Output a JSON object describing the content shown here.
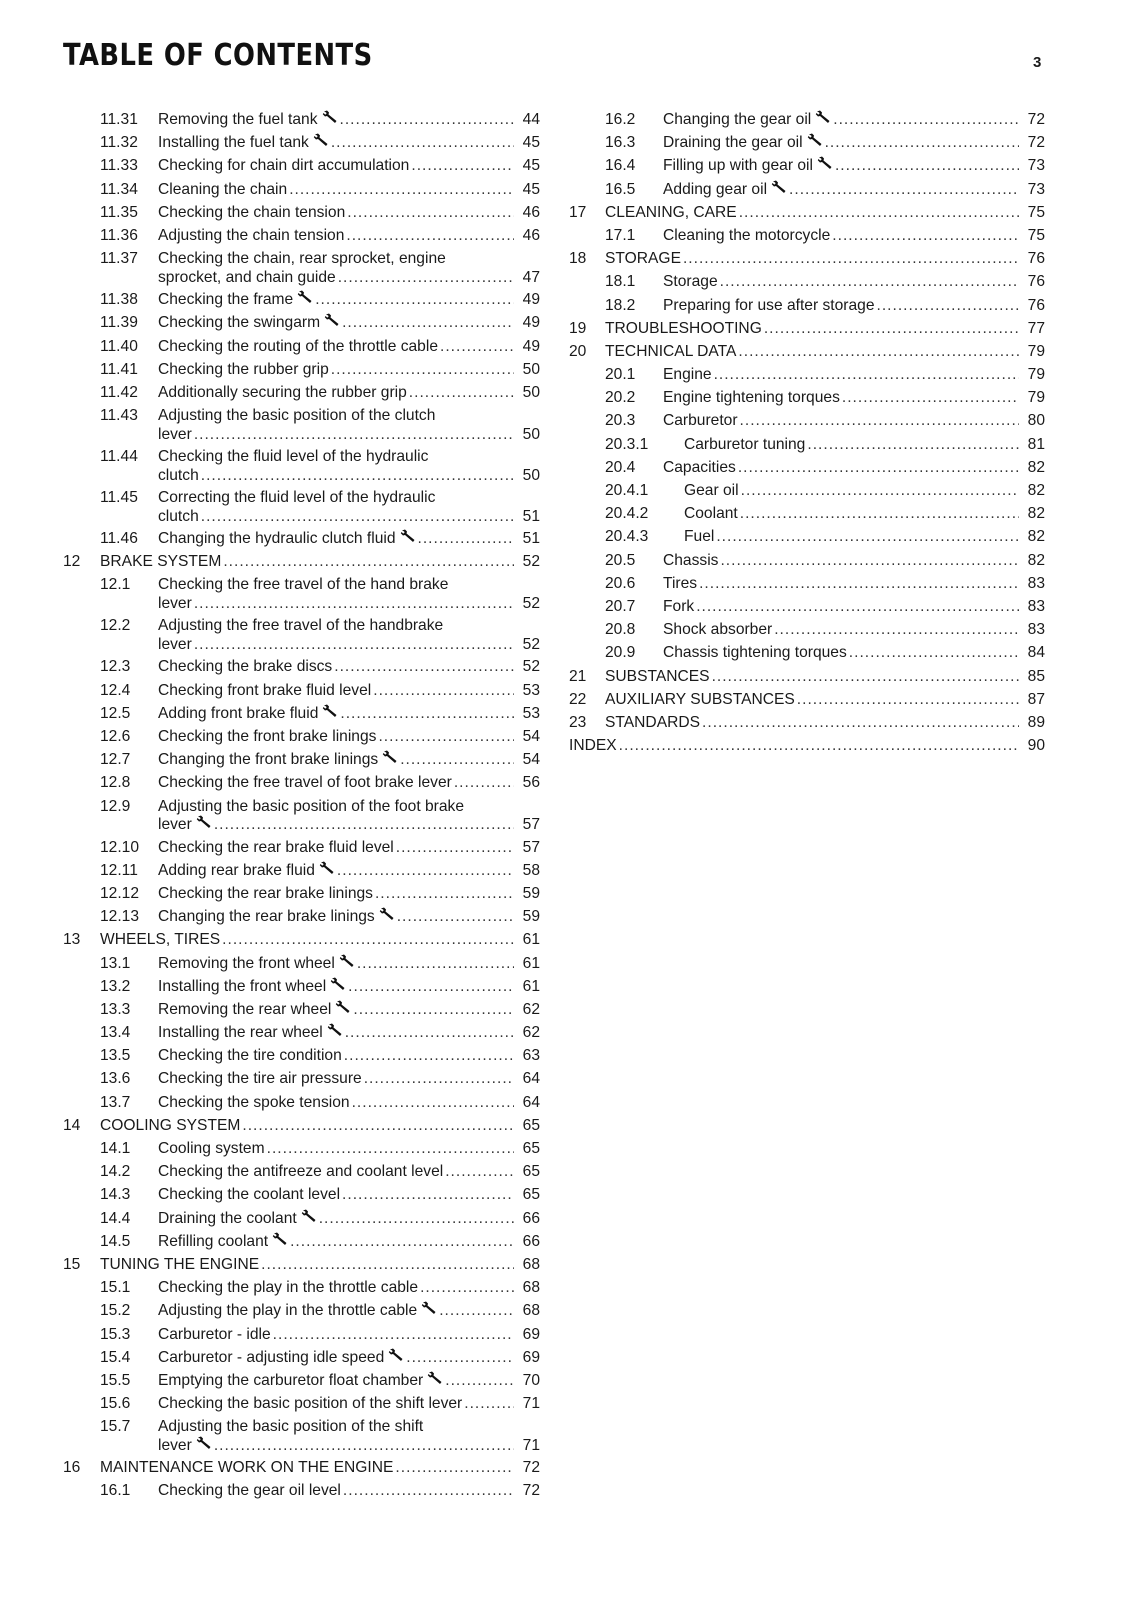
{
  "header": {
    "title": "TABLE OF CONTENTS",
    "page_number": "3"
  },
  "left_column": [
    {
      "lvl": "sec",
      "num": "11.31",
      "lines": [
        "Removing the fuel tank"
      ],
      "wrench": true,
      "page": "44"
    },
    {
      "lvl": "sec",
      "num": "11.32",
      "lines": [
        "Installing the fuel tank"
      ],
      "wrench": true,
      "page": "45"
    },
    {
      "lvl": "sec",
      "num": "11.33",
      "lines": [
        "Checking for chain dirt accumulation"
      ],
      "page": "45"
    },
    {
      "lvl": "sec",
      "num": "11.34",
      "lines": [
        "Cleaning the chain"
      ],
      "page": "45"
    },
    {
      "lvl": "sec",
      "num": "11.35",
      "lines": [
        "Checking the chain tension"
      ],
      "page": "46"
    },
    {
      "lvl": "sec",
      "num": "11.36",
      "lines": [
        "Adjusting the chain tension"
      ],
      "page": "46"
    },
    {
      "lvl": "sec",
      "num": "11.37",
      "lines": [
        "Checking the chain, rear sprocket, engine",
        "sprocket, and chain guide"
      ],
      "page": "47"
    },
    {
      "lvl": "sec",
      "num": "11.38",
      "lines": [
        "Checking the frame"
      ],
      "wrench": true,
      "page": "49"
    },
    {
      "lvl": "sec",
      "num": "11.39",
      "lines": [
        "Checking the swingarm"
      ],
      "wrench": true,
      "page": "49"
    },
    {
      "lvl": "sec",
      "num": "11.40",
      "lines": [
        "Checking the routing of the throttle cable"
      ],
      "page": "49"
    },
    {
      "lvl": "sec",
      "num": "11.41",
      "lines": [
        "Checking the rubber grip"
      ],
      "page": "50"
    },
    {
      "lvl": "sec",
      "num": "11.42",
      "lines": [
        "Additionally securing the rubber grip"
      ],
      "page": "50"
    },
    {
      "lvl": "sec",
      "num": "11.43",
      "lines": [
        "Adjusting the basic position of the clutch",
        "lever"
      ],
      "page": "50"
    },
    {
      "lvl": "sec",
      "num": "11.44",
      "lines": [
        "Checking the fluid level of the hydraulic",
        "clutch"
      ],
      "page": "50"
    },
    {
      "lvl": "sec",
      "num": "11.45",
      "lines": [
        "Correcting the fluid level of the hydraulic",
        "clutch"
      ],
      "page": "51"
    },
    {
      "lvl": "sec",
      "num": "11.46",
      "lines": [
        "Changing the hydraulic clutch fluid"
      ],
      "wrench": true,
      "page": "51"
    },
    {
      "lvl": "ch",
      "num": "12",
      "lines": [
        "BRAKE SYSTEM"
      ],
      "page": "52"
    },
    {
      "lvl": "sec",
      "num": "12.1",
      "lines": [
        "Checking the free travel of the hand brake",
        "lever"
      ],
      "page": "52"
    },
    {
      "lvl": "sec",
      "num": "12.2",
      "lines": [
        "Adjusting the free travel of the handbrake",
        "lever"
      ],
      "page": "52"
    },
    {
      "lvl": "sec",
      "num": "12.3",
      "lines": [
        "Checking the brake discs"
      ],
      "page": "52"
    },
    {
      "lvl": "sec",
      "num": "12.4",
      "lines": [
        "Checking front brake fluid level"
      ],
      "page": "53"
    },
    {
      "lvl": "sec",
      "num": "12.5",
      "lines": [
        "Adding front brake fluid"
      ],
      "wrench": true,
      "page": "53"
    },
    {
      "lvl": "sec",
      "num": "12.6",
      "lines": [
        "Checking the front brake linings"
      ],
      "page": "54"
    },
    {
      "lvl": "sec",
      "num": "12.7",
      "lines": [
        "Changing the front brake linings"
      ],
      "wrench": true,
      "page": "54"
    },
    {
      "lvl": "sec",
      "num": "12.8",
      "lines": [
        "Checking the free travel of foot brake lever"
      ],
      "page": "56"
    },
    {
      "lvl": "sec",
      "num": "12.9",
      "lines": [
        "Adjusting the basic position of the foot brake",
        "lever"
      ],
      "wrench": true,
      "page": "57"
    },
    {
      "lvl": "sec",
      "num": "12.10",
      "lines": [
        "Checking the rear brake fluid level"
      ],
      "page": "57"
    },
    {
      "lvl": "sec",
      "num": "12.11",
      "lines": [
        "Adding rear brake fluid"
      ],
      "wrench": true,
      "page": "58"
    },
    {
      "lvl": "sec",
      "num": "12.12",
      "lines": [
        "Checking the rear brake linings"
      ],
      "page": "59"
    },
    {
      "lvl": "sec",
      "num": "12.13",
      "lines": [
        "Changing the rear brake linings"
      ],
      "wrench": true,
      "page": "59"
    },
    {
      "lvl": "ch",
      "num": "13",
      "lines": [
        "WHEELS, TIRES"
      ],
      "page": "61"
    },
    {
      "lvl": "sec",
      "num": "13.1",
      "lines": [
        "Removing the front wheel"
      ],
      "wrench": true,
      "page": "61"
    },
    {
      "lvl": "sec",
      "num": "13.2",
      "lines": [
        "Installing the front wheel"
      ],
      "wrench": true,
      "page": "61"
    },
    {
      "lvl": "sec",
      "num": "13.3",
      "lines": [
        "Removing the rear wheel"
      ],
      "wrench": true,
      "page": "62"
    },
    {
      "lvl": "sec",
      "num": "13.4",
      "lines": [
        "Installing the rear wheel"
      ],
      "wrench": true,
      "page": "62"
    },
    {
      "lvl": "sec",
      "num": "13.5",
      "lines": [
        "Checking the tire condition"
      ],
      "page": "63"
    },
    {
      "lvl": "sec",
      "num": "13.6",
      "lines": [
        "Checking the tire air pressure"
      ],
      "page": "64"
    },
    {
      "lvl": "sec",
      "num": "13.7",
      "lines": [
        "Checking the spoke tension"
      ],
      "page": "64"
    },
    {
      "lvl": "ch",
      "num": "14",
      "lines": [
        "COOLING SYSTEM"
      ],
      "page": "65"
    },
    {
      "lvl": "sec",
      "num": "14.1",
      "lines": [
        "Cooling system"
      ],
      "page": "65"
    },
    {
      "lvl": "sec",
      "num": "14.2",
      "lines": [
        "Checking the antifreeze and coolant level"
      ],
      "page": "65"
    },
    {
      "lvl": "sec",
      "num": "14.3",
      "lines": [
        "Checking the coolant level"
      ],
      "page": "65"
    },
    {
      "lvl": "sec",
      "num": "14.4",
      "lines": [
        "Draining the coolant"
      ],
      "wrench": true,
      "page": "66"
    },
    {
      "lvl": "sec",
      "num": "14.5",
      "lines": [
        "Refilling coolant"
      ],
      "wrench": true,
      "page": "66"
    },
    {
      "lvl": "ch",
      "num": "15",
      "lines": [
        "TUNING THE ENGINE"
      ],
      "page": "68"
    },
    {
      "lvl": "sec",
      "num": "15.1",
      "lines": [
        "Checking the play in the throttle cable"
      ],
      "page": "68"
    },
    {
      "lvl": "sec",
      "num": "15.2",
      "lines": [
        "Adjusting the play in the throttle cable"
      ],
      "wrench": true,
      "page": "68"
    },
    {
      "lvl": "sec",
      "num": "15.3",
      "lines": [
        "Carburetor - idle"
      ],
      "page": "69"
    },
    {
      "lvl": "sec",
      "num": "15.4",
      "lines": [
        "Carburetor - adjusting idle speed"
      ],
      "wrench": true,
      "page": "69"
    },
    {
      "lvl": "sec",
      "num": "15.5",
      "lines": [
        "Emptying the carburetor float chamber"
      ],
      "wrench": true,
      "page": "70"
    },
    {
      "lvl": "sec",
      "num": "15.6",
      "lines": [
        "Checking the basic position of the shift lever"
      ],
      "page": "71"
    },
    {
      "lvl": "sec",
      "num": "15.7",
      "lines": [
        "Adjusting the basic position of the shift",
        "lever"
      ],
      "wrench": true,
      "page": "71"
    },
    {
      "lvl": "ch",
      "num": "16",
      "lines": [
        "MAINTENANCE WORK ON THE ENGINE"
      ],
      "page": "72"
    },
    {
      "lvl": "sec",
      "num": "16.1",
      "lines": [
        "Checking the gear oil level"
      ],
      "page": "72"
    }
  ],
  "right_column": [
    {
      "lvl": "sec",
      "num": "16.2",
      "lines": [
        "Changing the gear oil"
      ],
      "wrench": true,
      "page": "72"
    },
    {
      "lvl": "sec",
      "num": "16.3",
      "lines": [
        "Draining the gear oil"
      ],
      "wrench": true,
      "page": "72"
    },
    {
      "lvl": "sec",
      "num": "16.4",
      "lines": [
        "Filling up with gear oil"
      ],
      "wrench": true,
      "page": "73"
    },
    {
      "lvl": "sec",
      "num": "16.5",
      "lines": [
        "Adding gear oil"
      ],
      "wrench": true,
      "page": "73"
    },
    {
      "lvl": "ch",
      "num": "17",
      "lines": [
        "CLEANING, CARE"
      ],
      "page": "75"
    },
    {
      "lvl": "sec",
      "num": "17.1",
      "lines": [
        "Cleaning the motorcycle"
      ],
      "page": "75"
    },
    {
      "lvl": "ch",
      "num": "18",
      "lines": [
        "STORAGE"
      ],
      "page": "76"
    },
    {
      "lvl": "sec",
      "num": "18.1",
      "lines": [
        "Storage"
      ],
      "page": "76"
    },
    {
      "lvl": "sec",
      "num": "18.2",
      "lines": [
        "Preparing for use after storage"
      ],
      "page": "76"
    },
    {
      "lvl": "ch",
      "num": "19",
      "lines": [
        "TROUBLESHOOTING"
      ],
      "page": "77"
    },
    {
      "lvl": "ch",
      "num": "20",
      "lines": [
        "TECHNICAL DATA"
      ],
      "page": "79"
    },
    {
      "lvl": "sec",
      "num": "20.1",
      "lines": [
        "Engine"
      ],
      "page": "79"
    },
    {
      "lvl": "sec",
      "num": "20.2",
      "lines": [
        "Engine tightening torques"
      ],
      "page": "79"
    },
    {
      "lvl": "sec",
      "num": "20.3",
      "lines": [
        "Carburetor"
      ],
      "page": "80"
    },
    {
      "lvl": "sub",
      "num": "20.3.1",
      "lines": [
        "Carburetor tuning"
      ],
      "page": "81"
    },
    {
      "lvl": "sec",
      "num": "20.4",
      "lines": [
        "Capacities"
      ],
      "page": "82"
    },
    {
      "lvl": "sub",
      "num": "20.4.1",
      "lines": [
        "Gear oil"
      ],
      "page": "82"
    },
    {
      "lvl": "sub",
      "num": "20.4.2",
      "lines": [
        "Coolant"
      ],
      "page": "82"
    },
    {
      "lvl": "sub",
      "num": "20.4.3",
      "lines": [
        "Fuel"
      ],
      "page": "82"
    },
    {
      "lvl": "sec",
      "num": "20.5",
      "lines": [
        "Chassis"
      ],
      "page": "82"
    },
    {
      "lvl": "sec",
      "num": "20.6",
      "lines": [
        "Tires"
      ],
      "page": "83"
    },
    {
      "lvl": "sec",
      "num": "20.7",
      "lines": [
        "Fork"
      ],
      "page": "83"
    },
    {
      "lvl": "sec",
      "num": "20.8",
      "lines": [
        "Shock absorber"
      ],
      "page": "83"
    },
    {
      "lvl": "sec",
      "num": "20.9",
      "lines": [
        "Chassis tightening torques"
      ],
      "page": "84"
    },
    {
      "lvl": "ch",
      "num": "21",
      "lines": [
        "SUBSTANCES"
      ],
      "page": "85"
    },
    {
      "lvl": "ch",
      "num": "22",
      "lines": [
        "AUXILIARY SUBSTANCES"
      ],
      "page": "87"
    },
    {
      "lvl": "ch",
      "num": "23",
      "lines": [
        "STANDARDS"
      ],
      "page": "89"
    },
    {
      "lvl": "none",
      "num": "",
      "lines": [
        "INDEX"
      ],
      "page": "90"
    }
  ]
}
